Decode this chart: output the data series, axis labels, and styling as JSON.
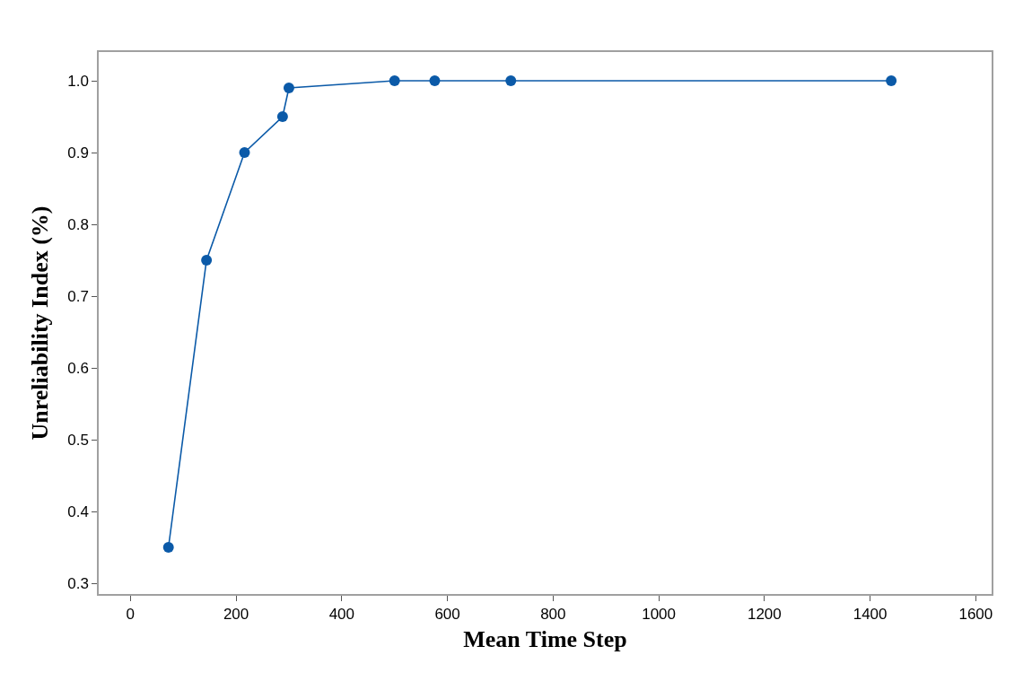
{
  "chart_data": {
    "type": "line",
    "xlabel": "Mean Time Step",
    "ylabel": "Unreliability Index (%)",
    "x": [
      72,
      144,
      216,
      288,
      300,
      500,
      576,
      720,
      1440
    ],
    "series": [
      {
        "color": "#0b5aa8",
        "values": [
          0.35,
          0.75,
          0.9,
          0.95,
          0.99,
          1.0,
          1.0,
          1.0,
          1.0
        ]
      }
    ],
    "xlim": [
      -60,
      1630
    ],
    "xticks": [
      0,
      200,
      400,
      600,
      800,
      1000,
      1200,
      1400,
      1600
    ],
    "ylim": [
      0.285,
      1.04
    ],
    "yticks": [
      0.3,
      0.4,
      0.5,
      0.6,
      0.7,
      0.8,
      0.9,
      {
        "value": 1.0,
        "label": "1.0"
      }
    ],
    "grid": false,
    "marker": "circle",
    "line_style": "solid"
  }
}
